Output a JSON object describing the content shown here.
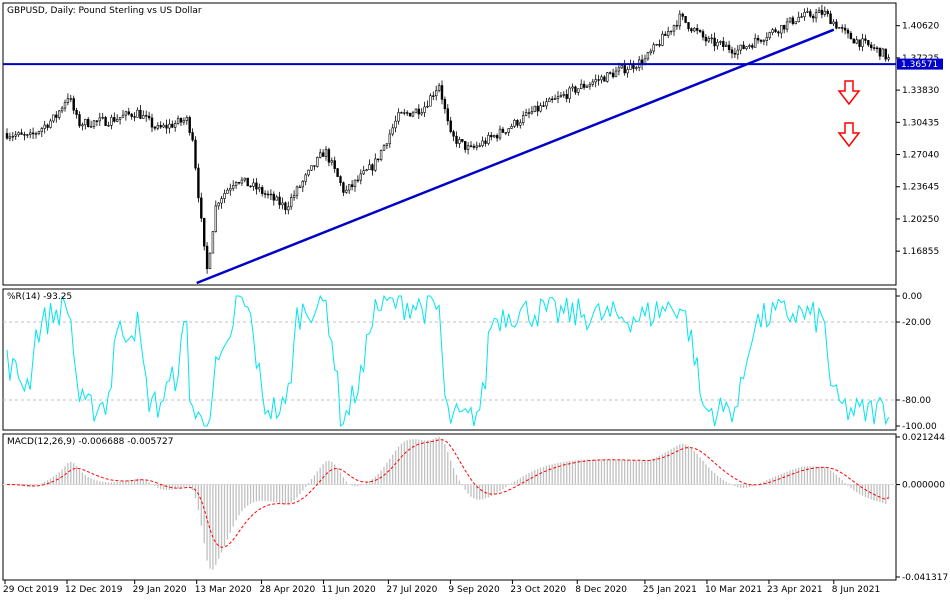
{
  "chart_data": [
    {
      "type": "candlestick",
      "title": "GBPUSD, Daily:  Pound Sterling vs US Dollar",
      "ylim": [
        1.135,
        1.428
      ],
      "price_ticks": [
        "1.40620",
        "1.37225",
        "1.33830",
        "1.30435",
        "1.27040",
        "1.23645",
        "1.20250",
        "1.16855"
      ],
      "price_tick_values": [
        1.4062,
        1.37225,
        1.3383,
        1.30435,
        1.2704,
        1.23645,
        1.2025,
        1.16855
      ],
      "current_price_label": "1.36571",
      "current_price": 1.36571,
      "horizontal_line": 1.36571,
      "trendline": {
        "from": [
          "13 Mar 2020",
          1.135
        ],
        "to": [
          "8 Jun 2021",
          1.402
        ]
      },
      "arrows": [
        "down",
        "down"
      ],
      "colors": {
        "candles": "#000000",
        "lines": "#0000c8",
        "arrows": "#ff0000"
      },
      "close_path": [
        [
          "29 Oct 2019",
          1.293
        ],
        [
          "15 Nov 2019",
          1.288
        ],
        [
          "4 Dec 2019",
          1.31
        ],
        [
          "13 Dec 2019",
          1.333
        ],
        [
          "20 Dec 2019",
          1.303
        ],
        [
          "10 Jan 2020",
          1.306
        ],
        [
          "31 Jan 2020",
          1.315
        ],
        [
          "14 Feb 2020",
          1.297
        ],
        [
          "6 Mar 2020",
          1.307
        ],
        [
          "10 Mar 2020",
          1.29
        ],
        [
          "20 Mar 2020",
          1.145
        ],
        [
          "27 Mar 2020",
          1.22
        ],
        [
          "10 Apr 2020",
          1.245
        ],
        [
          "24 Apr 2020",
          1.235
        ],
        [
          "15 May 2020",
          1.215
        ],
        [
          "5 Jun 2020",
          1.26
        ],
        [
          "12 Jun 2020",
          1.275
        ],
        [
          "26 Jun 2020",
          1.23
        ],
        [
          "17 Jul 2020",
          1.26
        ],
        [
          "3 Aug 2020",
          1.31
        ],
        [
          "21 Aug 2020",
          1.32
        ],
        [
          "1 Sep 2020",
          1.345
        ],
        [
          "9 Sep 2020",
          1.29
        ],
        [
          "23 Sep 2020",
          1.275
        ],
        [
          "16 Oct 2020",
          1.295
        ],
        [
          "6 Nov 2020",
          1.315
        ],
        [
          "8 Dec 2020",
          1.34
        ],
        [
          "25 Jan 2021",
          1.37
        ],
        [
          "19 Feb 2021",
          1.415
        ],
        [
          "10 Mar 2021",
          1.39
        ],
        [
          "1 Apr 2021",
          1.38
        ],
        [
          "14 May 2021",
          1.415
        ],
        [
          "1 Jun 2021",
          1.42
        ],
        [
          "18 Jun 2021",
          1.395
        ],
        [
          "12 Jul 2021",
          1.378
        ],
        [
          "20 Jul 2021",
          1.366
        ]
      ]
    },
    {
      "type": "line",
      "title": "%R(14) -93.25",
      "ylim": [
        -100,
        0
      ],
      "ticks": [
        "0.00",
        "-20.00",
        "-80.00",
        "-100.00"
      ],
      "tick_values": [
        0,
        -20,
        -80,
        -100
      ],
      "levels": [
        -20,
        -80
      ],
      "color": "#00e5ee",
      "last_value": -93.25
    },
    {
      "type": "bar+line",
      "title": "MACD(12,26,9) -0.006688 -0.005727",
      "ylim": [
        -0.041317,
        0.021244
      ],
      "ticks": [
        "0.021244",
        "0.000000",
        "-0.041317"
      ],
      "tick_values": [
        0.021244,
        0.0,
        -0.041317
      ],
      "main_value": -0.006688,
      "signal_value": -0.005727,
      "histogram_color": "#c0c0c0",
      "signal_color": "#ff0000"
    }
  ],
  "x_axis": {
    "labels": [
      "29 Oct 2019",
      "12 Dec 2019",
      "29 Jan 2020",
      "13 Mar 2020",
      "28 Apr 2020",
      "11 Jun 2020",
      "27 Jul 2020",
      "9 Sep 2020",
      "23 Oct 2020",
      "8 Dec 2020",
      "25 Jan 2021",
      "10 Mar 2021",
      "23 Apr 2021",
      "8 Jun 2021"
    ],
    "start": "29 Oct 2019",
    "end": "20 Jul 2021"
  }
}
